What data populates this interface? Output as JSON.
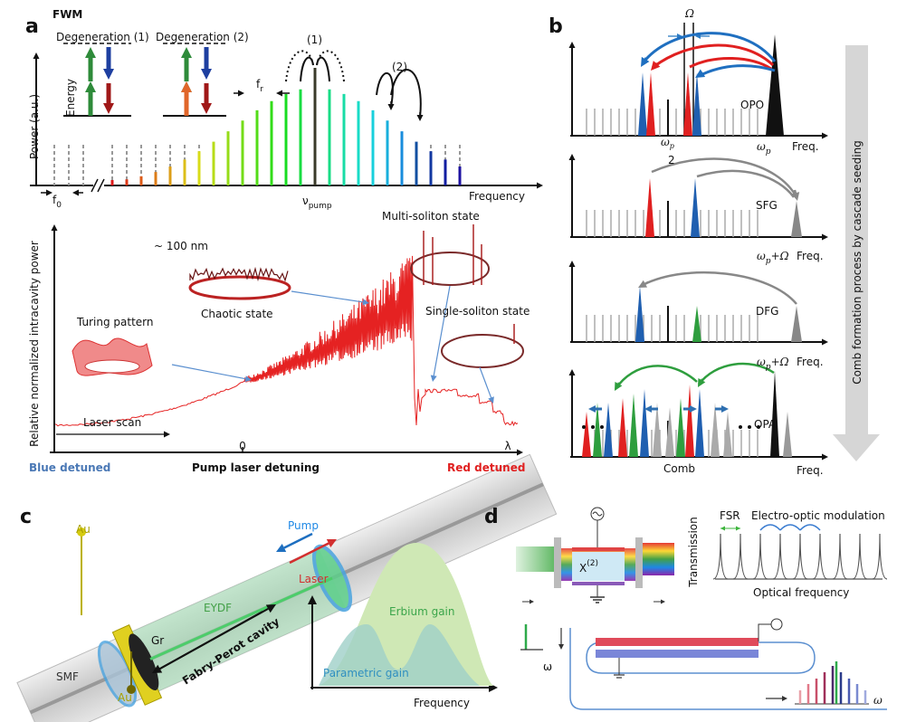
{
  "panels": {
    "a": {
      "label": "a",
      "fwm": "FWM",
      "degeneration_1": "Degeneration (1)",
      "degeneration_2": "Degeneration (2)",
      "energy": "Energy",
      "process_1": "(1)",
      "process_2": "(2)",
      "fr": {
        "symbol": "f",
        "subscript": "r"
      },
      "power_axis": "Power (a.u.)",
      "frequency": "Frequency",
      "f0": {
        "symbol": "f",
        "subscript": "0"
      },
      "nu_pump": {
        "symbol": "ν",
        "subscript": "pump"
      },
      "scale": "~ 100 nm",
      "multi_soliton": "Multi-soliton state",
      "chaotic": "Chaotic state",
      "turing": "Turing pattern",
      "single_soliton": "Single-soliton state",
      "laser_scan": "Laser scan",
      "intracavity_axis": "Relative normalized intracavity power",
      "zero": "0",
      "lambda": "λ",
      "blue_detuned": "Blue detuned",
      "pump_detuning": "Pump laser detuning",
      "red_detuned": "Red detuned"
    },
    "b": {
      "label": "b",
      "omega_cap": "Ω",
      "opo": "OPO",
      "half_num": {
        "symbol": "ω",
        "subscript": "p"
      },
      "half_den": "2",
      "omega_p": {
        "symbol": "ω",
        "subscript": "p"
      },
      "freq_1": "Freq.",
      "sfg": "SFG",
      "sum_2": {
        "symbol": "ω",
        "subscript": "p",
        "rest": "+Ω"
      },
      "freq_2": "Freq.",
      "dfg": "DFG",
      "sum_3": {
        "symbol": "ω",
        "subscript": "p",
        "rest": "+Ω"
      },
      "freq_3": "Freq.",
      "opa": "OPA",
      "comb": "Comb",
      "freq_4": "Freq.",
      "side": "Comb formation process by cascade seeding"
    },
    "c": {
      "label": "c",
      "au_top": "Au",
      "pump": "Pump",
      "laser": "Laser",
      "eydf": "EYDF",
      "gr": "Gr",
      "smf": "SMF",
      "au_bottom": "Au",
      "cavity": "Fabry-Perot cavity",
      "erbium": "Erbium gain",
      "parametric": "Parametric gain",
      "frequency": "Frequency"
    },
    "d": {
      "label": "d",
      "chi": {
        "symbol": "X",
        "superscript": "(2)"
      },
      "transmission": "Transmission",
      "fsr": "FSR",
      "eom": "Electro-optic modulation",
      "optical_frequency": "Optical frequency",
      "omega_in": "ω",
      "omega_out": "ω"
    }
  }
}
